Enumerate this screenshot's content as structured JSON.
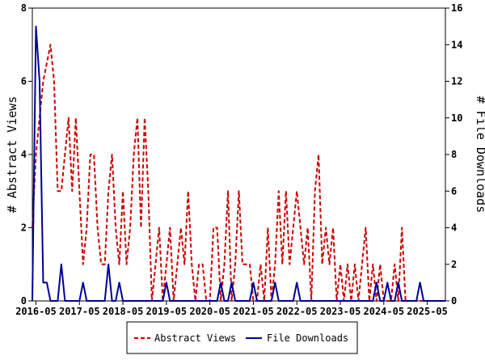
{
  "chart_data": {
    "type": "line",
    "x_tick_labels": [
      "2016-05",
      "2017-05",
      "2018-05",
      "2019-05",
      "2020-05",
      "2021-05",
      "2022-05",
      "2023-05",
      "2024-05",
      "2025-05"
    ],
    "ylabel_left": "# Abstract Views",
    "ylabel_right": "# File Downloads",
    "ylim_left": [
      0,
      8
    ],
    "ylim_right": [
      0,
      16
    ],
    "y_ticks_left": [
      "0",
      "2",
      "4",
      "6",
      "8"
    ],
    "y_ticks_right": [
      "0",
      "2",
      "4",
      "6",
      "8",
      "10",
      "12",
      "14",
      "16"
    ],
    "legend_position": "bottom-center",
    "grid": false,
    "series": [
      {
        "name": "Abstract Views",
        "axis": "left",
        "color": "#cc0000",
        "style": "dashed",
        "points": [
          [
            "2016-04",
            2
          ],
          [
            "2016-05",
            4
          ],
          [
            "2016-06",
            5
          ],
          [
            "2016-07",
            6
          ],
          [
            "2016-08",
            6.5
          ],
          [
            "2016-09",
            7
          ],
          [
            "2016-10",
            6
          ],
          [
            "2016-11",
            3
          ],
          [
            "2016-12",
            3
          ],
          [
            "2017-01",
            4
          ],
          [
            "2017-02",
            5
          ],
          [
            "2017-03",
            3
          ],
          [
            "2017-04",
            5
          ],
          [
            "2017-05",
            3
          ],
          [
            "2017-06",
            1
          ],
          [
            "2017-07",
            2
          ],
          [
            "2017-08",
            4
          ],
          [
            "2017-09",
            4
          ],
          [
            "2017-10",
            2
          ],
          [
            "2017-11",
            1
          ],
          [
            "2017-12",
            1
          ],
          [
            "2018-01",
            3
          ],
          [
            "2018-02",
            4
          ],
          [
            "2018-03",
            2
          ],
          [
            "2018-04",
            1
          ],
          [
            "2018-05",
            3
          ],
          [
            "2018-06",
            1
          ],
          [
            "2018-07",
            2
          ],
          [
            "2018-08",
            4
          ],
          [
            "2018-09",
            5
          ],
          [
            "2018-10",
            2
          ],
          [
            "2018-11",
            5
          ],
          [
            "2018-12",
            3
          ],
          [
            "2019-01",
            0
          ],
          [
            "2019-02",
            1
          ],
          [
            "2019-03",
            2
          ],
          [
            "2019-04",
            0
          ],
          [
            "2019-05",
            1
          ],
          [
            "2019-06",
            2
          ],
          [
            "2019-07",
            0
          ],
          [
            "2019-08",
            1
          ],
          [
            "2019-09",
            2
          ],
          [
            "2019-10",
            1
          ],
          [
            "2019-11",
            3
          ],
          [
            "2019-12",
            1
          ],
          [
            "2020-01",
            0
          ],
          [
            "2020-02",
            1
          ],
          [
            "2020-03",
            1
          ],
          [
            "2020-04",
            0
          ],
          [
            "2020-05",
            0
          ],
          [
            "2020-06",
            2
          ],
          [
            "2020-07",
            2
          ],
          [
            "2020-08",
            0
          ],
          [
            "2020-09",
            1
          ],
          [
            "2020-10",
            3
          ],
          [
            "2020-11",
            0
          ],
          [
            "2020-12",
            1
          ],
          [
            "2021-01",
            3
          ],
          [
            "2021-02",
            1
          ],
          [
            "2021-03",
            1
          ],
          [
            "2021-04",
            1
          ],
          [
            "2021-05",
            0
          ],
          [
            "2021-06",
            0
          ],
          [
            "2021-07",
            1
          ],
          [
            "2021-08",
            0
          ],
          [
            "2021-09",
            2
          ],
          [
            "2021-10",
            0
          ],
          [
            "2021-11",
            1
          ],
          [
            "2021-12",
            3
          ],
          [
            "2022-01",
            1
          ],
          [
            "2022-02",
            3
          ],
          [
            "2022-03",
            1
          ],
          [
            "2022-04",
            2
          ],
          [
            "2022-05",
            3
          ],
          [
            "2022-06",
            2
          ],
          [
            "2022-07",
            1
          ],
          [
            "2022-08",
            2
          ],
          [
            "2022-09",
            0
          ],
          [
            "2022-10",
            3
          ],
          [
            "2022-11",
            4
          ],
          [
            "2022-12",
            1
          ],
          [
            "2023-01",
            2
          ],
          [
            "2023-02",
            1
          ],
          [
            "2023-03",
            2
          ],
          [
            "2023-04",
            0
          ],
          [
            "2023-05",
            1
          ],
          [
            "2023-06",
            0
          ],
          [
            "2023-07",
            1
          ],
          [
            "2023-08",
            0
          ],
          [
            "2023-09",
            1
          ],
          [
            "2023-10",
            0
          ],
          [
            "2023-11",
            1
          ],
          [
            "2023-12",
            2
          ],
          [
            "2024-01",
            0
          ],
          [
            "2024-02",
            1
          ],
          [
            "2024-03",
            0
          ],
          [
            "2024-04",
            1
          ],
          [
            "2024-05",
            0
          ],
          [
            "2024-06",
            0
          ],
          [
            "2024-07",
            0
          ],
          [
            "2024-08",
            1
          ],
          [
            "2024-09",
            0
          ],
          [
            "2024-10",
            2
          ],
          [
            "2024-11",
            0
          ],
          [
            "2024-12",
            0
          ],
          [
            "2025-01",
            0
          ],
          [
            "2025-02",
            0
          ],
          [
            "2025-03",
            0
          ],
          [
            "2025-04",
            0
          ],
          [
            "2025-05",
            0
          ],
          [
            "2025-06",
            0
          ],
          [
            "2025-07",
            0
          ],
          [
            "2025-08",
            0
          ],
          [
            "2025-09",
            0
          ],
          [
            "2025-10",
            0
          ]
        ]
      },
      {
        "name": "File Downloads",
        "axis": "right",
        "color": "#000099",
        "style": "solid",
        "points": [
          [
            "2016-04",
            0
          ],
          [
            "2016-05",
            15
          ],
          [
            "2016-06",
            12
          ],
          [
            "2016-07",
            1
          ],
          [
            "2016-08",
            1
          ],
          [
            "2016-09",
            0
          ],
          [
            "2016-10",
            0
          ],
          [
            "2016-11",
            0
          ],
          [
            "2016-12",
            2
          ],
          [
            "2017-01",
            0
          ],
          [
            "2017-02",
            0
          ],
          [
            "2017-03",
            0
          ],
          [
            "2017-04",
            0
          ],
          [
            "2017-05",
            0
          ],
          [
            "2017-06",
            1
          ],
          [
            "2017-07",
            0
          ],
          [
            "2017-08",
            0
          ],
          [
            "2017-09",
            0
          ],
          [
            "2017-10",
            0
          ],
          [
            "2017-11",
            0
          ],
          [
            "2017-12",
            0
          ],
          [
            "2018-01",
            2
          ],
          [
            "2018-02",
            0
          ],
          [
            "2018-03",
            0
          ],
          [
            "2018-04",
            1
          ],
          [
            "2018-05",
            0
          ],
          [
            "2018-06",
            0
          ],
          [
            "2018-07",
            0
          ],
          [
            "2018-08",
            0
          ],
          [
            "2018-09",
            0
          ],
          [
            "2018-10",
            0
          ],
          [
            "2018-11",
            0
          ],
          [
            "2018-12",
            0
          ],
          [
            "2019-01",
            0
          ],
          [
            "2019-02",
            0
          ],
          [
            "2019-03",
            0
          ],
          [
            "2019-04",
            0
          ],
          [
            "2019-05",
            1
          ],
          [
            "2019-06",
            0
          ],
          [
            "2019-07",
            0
          ],
          [
            "2019-08",
            0
          ],
          [
            "2019-09",
            0
          ],
          [
            "2019-10",
            0
          ],
          [
            "2019-11",
            0
          ],
          [
            "2019-12",
            0
          ],
          [
            "2020-01",
            0
          ],
          [
            "2020-02",
            0
          ],
          [
            "2020-03",
            0
          ],
          [
            "2020-04",
            0
          ],
          [
            "2020-05",
            0
          ],
          [
            "2020-06",
            0
          ],
          [
            "2020-07",
            0
          ],
          [
            "2020-08",
            1
          ],
          [
            "2020-09",
            0
          ],
          [
            "2020-10",
            0
          ],
          [
            "2020-11",
            1
          ],
          [
            "2020-12",
            0
          ],
          [
            "2021-01",
            0
          ],
          [
            "2021-02",
            0
          ],
          [
            "2021-03",
            0
          ],
          [
            "2021-04",
            0
          ],
          [
            "2021-05",
            1
          ],
          [
            "2021-06",
            0
          ],
          [
            "2021-07",
            0
          ],
          [
            "2021-08",
            0
          ],
          [
            "2021-09",
            0
          ],
          [
            "2021-10",
            0
          ],
          [
            "2021-11",
            1
          ],
          [
            "2021-12",
            0
          ],
          [
            "2022-01",
            0
          ],
          [
            "2022-02",
            0
          ],
          [
            "2022-03",
            0
          ],
          [
            "2022-04",
            0
          ],
          [
            "2022-05",
            1
          ],
          [
            "2022-06",
            0
          ],
          [
            "2022-07",
            0
          ],
          [
            "2022-08",
            0
          ],
          [
            "2022-09",
            0
          ],
          [
            "2022-10",
            0
          ],
          [
            "2022-11",
            0
          ],
          [
            "2022-12",
            0
          ],
          [
            "2023-01",
            0
          ],
          [
            "2023-02",
            0
          ],
          [
            "2023-03",
            0
          ],
          [
            "2023-04",
            0
          ],
          [
            "2023-05",
            0
          ],
          [
            "2023-06",
            0
          ],
          [
            "2023-07",
            0
          ],
          [
            "2023-08",
            0
          ],
          [
            "2023-09",
            0
          ],
          [
            "2023-10",
            0
          ],
          [
            "2023-11",
            0
          ],
          [
            "2023-12",
            0
          ],
          [
            "2024-01",
            0
          ],
          [
            "2024-02",
            0
          ],
          [
            "2024-03",
            1
          ],
          [
            "2024-04",
            0
          ],
          [
            "2024-05",
            0
          ],
          [
            "2024-06",
            1
          ],
          [
            "2024-07",
            0
          ],
          [
            "2024-08",
            0
          ],
          [
            "2024-09",
            1
          ],
          [
            "2024-10",
            0
          ],
          [
            "2024-11",
            0
          ],
          [
            "2024-12",
            0
          ],
          [
            "2025-01",
            0
          ],
          [
            "2025-02",
            0
          ],
          [
            "2025-03",
            1
          ],
          [
            "2025-04",
            0
          ],
          [
            "2025-05",
            0
          ],
          [
            "2025-06",
            0
          ],
          [
            "2025-07",
            0
          ],
          [
            "2025-08",
            0
          ],
          [
            "2025-09",
            0
          ],
          [
            "2025-10",
            0
          ]
        ]
      }
    ]
  }
}
